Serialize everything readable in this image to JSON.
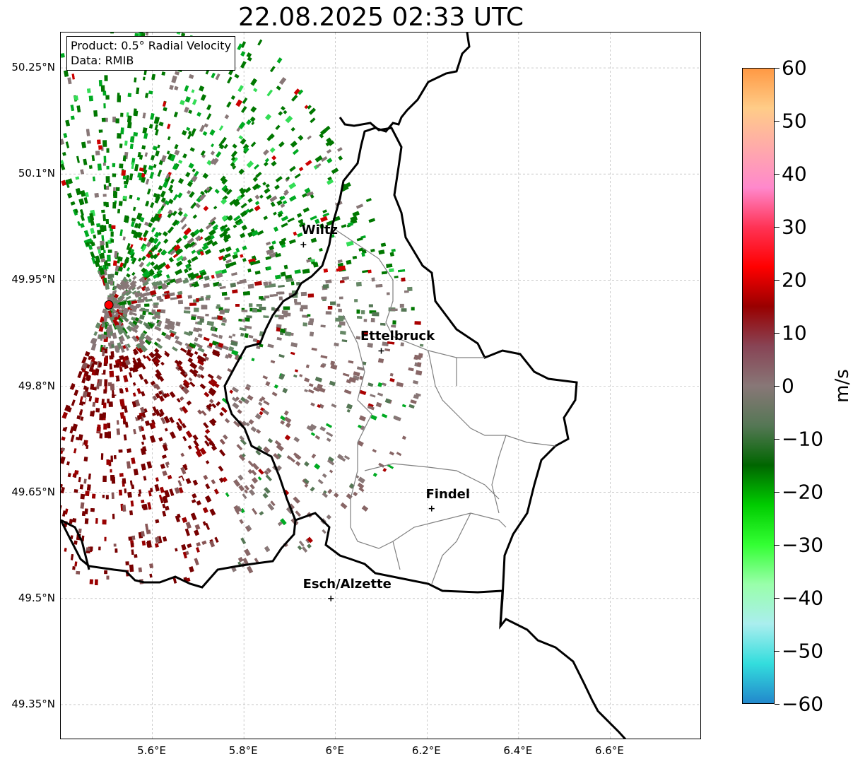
{
  "title": "22.08.2025 02:33 UTC",
  "infobox": {
    "product": "Product: 0.5° Radial Velocity",
    "source": "Data: RMIB"
  },
  "axes": {
    "lat_ticks": [
      "50.25°N",
      "50.1°N",
      "49.95°N",
      "49.8°N",
      "49.65°N",
      "49.5°N",
      "49.35°N"
    ],
    "lon_ticks": [
      "5.6°E",
      "5.8°E",
      "6°E",
      "6.2°E",
      "6.4°E",
      "6.6°E"
    ],
    "lat_range": [
      49.3,
      50.3
    ],
    "lon_range": [
      5.4,
      6.8
    ],
    "grid": true
  },
  "cities": [
    {
      "name": "Wiltz",
      "lon": 5.93,
      "lat": 50.0
    },
    {
      "name": "Ettelbruck",
      "lon": 6.1,
      "lat": 49.85
    },
    {
      "name": "Findel",
      "lon": 6.21,
      "lat": 49.627
    },
    {
      "name": "Esch/Alzette",
      "lon": 5.99,
      "lat": 49.5
    }
  ],
  "radar_site": {
    "lon": 5.505,
    "lat": 49.915,
    "color": "#ff0000"
  },
  "colorbar": {
    "unit": "m/s",
    "ticks": [
      "60",
      "50",
      "40",
      "30",
      "20",
      "10",
      "0",
      "−10",
      "−20",
      "−30",
      "−40",
      "−50",
      "−60"
    ],
    "min": -60,
    "max": 60,
    "stops": [
      "#ff9944",
      "#ffcc88",
      "#ffaaaa",
      "#ff88cc",
      "#ff3355",
      "#ff0000",
      "#990000",
      "#884455",
      "#887777",
      "#557755",
      "#006600",
      "#00cc00",
      "#33ff33",
      "#99ffaa",
      "#aaeeee",
      "#33dddd",
      "#2288cc"
    ]
  }
}
